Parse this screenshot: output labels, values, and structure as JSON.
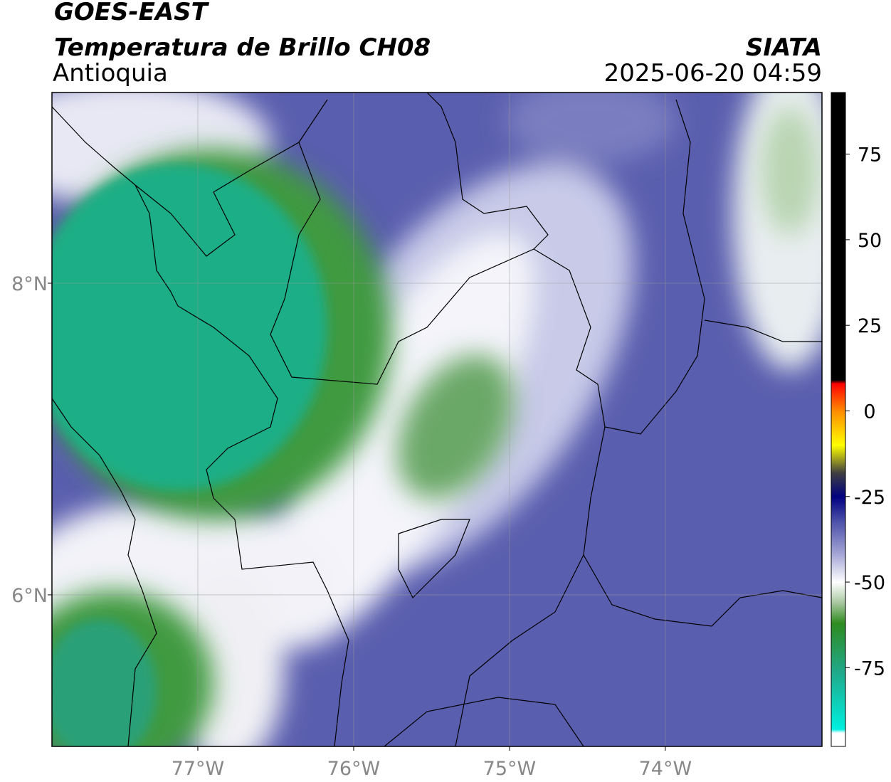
{
  "chart_data": {
    "type": "map",
    "title": "GOES-EAST",
    "subtitle": "Temperatura de Brillo CH08",
    "region": "Antioquia",
    "source": "SIATA",
    "timestamp": "2025-06-20 04:59",
    "xlim": [
      -77.936,
      -72.995
    ],
    "ylim": [
      5.027,
      9.224
    ],
    "xticks": [
      {
        "value": -77,
        "label": "77°W"
      },
      {
        "value": -76,
        "label": "76°W"
      },
      {
        "value": -75,
        "label": "75°W"
      },
      {
        "value": -74,
        "label": "74°W"
      }
    ],
    "yticks": [
      {
        "value": 8,
        "label": "8°N"
      },
      {
        "value": 6,
        "label": "6°N"
      }
    ],
    "grid": true,
    "colorbar": {
      "lim": [
        -98,
        93
      ],
      "ticks": [
        75,
        50,
        25,
        0,
        -25,
        -50,
        -75
      ],
      "stops": [
        {
          "value": 93,
          "color": "#000000"
        },
        {
          "value": 9,
          "color": "#000000"
        },
        {
          "value": 8,
          "color": "#ff0000"
        },
        {
          "value": 0,
          "color": "#ff8c00"
        },
        {
          "value": -10,
          "color": "#ffff00"
        },
        {
          "value": -18,
          "color": "#404040"
        },
        {
          "value": -25,
          "color": "#000080"
        },
        {
          "value": -32,
          "color": "#4a4ea8"
        },
        {
          "value": -42,
          "color": "#a6a8d6"
        },
        {
          "value": -50,
          "color": "#ffffff"
        },
        {
          "value": -56,
          "color": "#a8c8a0"
        },
        {
          "value": -62,
          "color": "#2e8b20"
        },
        {
          "value": -76,
          "color": "#20a888"
        },
        {
          "value": -93,
          "color": "#00f0e0"
        },
        {
          "value": -94,
          "color": "#ffffff"
        },
        {
          "value": -98,
          "color": "#ffffff"
        }
      ]
    }
  }
}
